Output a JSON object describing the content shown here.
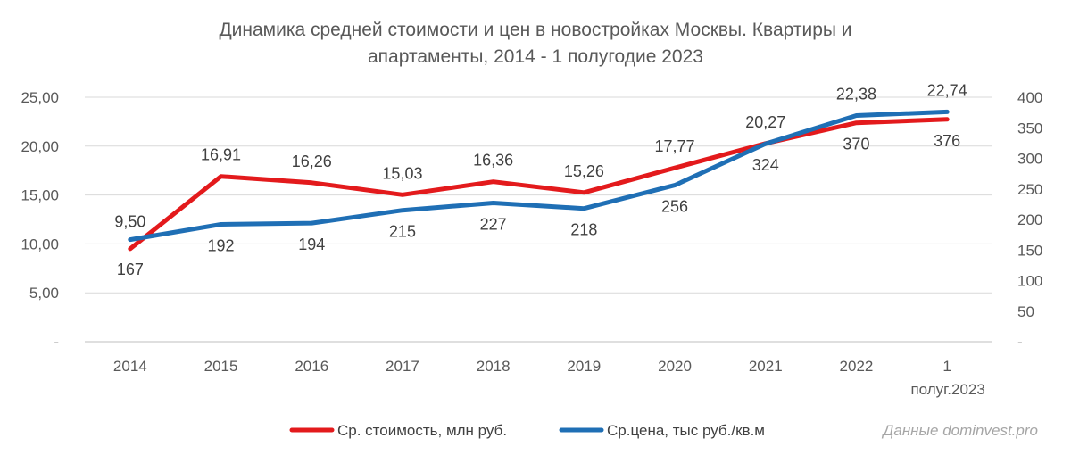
{
  "chart_data": {
    "type": "line",
    "title_lines": [
      "Динамика средней стоимости и цен в новостройках Москвы. Квартиры и",
      "апартаменты, 2014 - 1 полугодие 2023"
    ],
    "categories": [
      [
        "2014"
      ],
      [
        "2015"
      ],
      [
        "2016"
      ],
      [
        "2017"
      ],
      [
        "2018"
      ],
      [
        "2019"
      ],
      [
        "2020"
      ],
      [
        "2021"
      ],
      [
        "2022"
      ],
      [
        "1",
        "полуг.2023"
      ]
    ],
    "y_left": {
      "min": 0,
      "max": 25,
      "step": 5,
      "tick_labels": [
        "-",
        "5,00",
        "10,00",
        "15,00",
        "20,00",
        "25,00"
      ]
    },
    "y_right": {
      "min": 0,
      "max": 400,
      "step": 50,
      "tick_labels": [
        "-",
        "50",
        "100",
        "150",
        "200",
        "250",
        "300",
        "350",
        "400"
      ]
    },
    "grid": "horizontal",
    "legend_position": "bottom",
    "series": [
      {
        "name": "Ср. стоимость, млн руб.",
        "axis": "left",
        "color": "#e31a1c",
        "values": [
          9.5,
          16.91,
          16.26,
          15.03,
          16.36,
          15.26,
          17.77,
          20.27,
          22.38,
          22.74
        ],
        "labels": [
          "9,50",
          "16,91",
          "16,26",
          "15,03",
          "16,36",
          "15,26",
          "17,77",
          "20,27",
          "22,38",
          "22,74"
        ]
      },
      {
        "name": "Ср.цена, тыс руб./кв.м",
        "axis": "right",
        "color": "#1f6fb5",
        "values": [
          167,
          192,
          194,
          215,
          227,
          218,
          256,
          324,
          370,
          376
        ],
        "labels": [
          "167",
          "192",
          "194",
          "215",
          "227",
          "218",
          "256",
          "324",
          "370",
          "376"
        ]
      }
    ],
    "source_note": "Данные dominvest.pro"
  }
}
